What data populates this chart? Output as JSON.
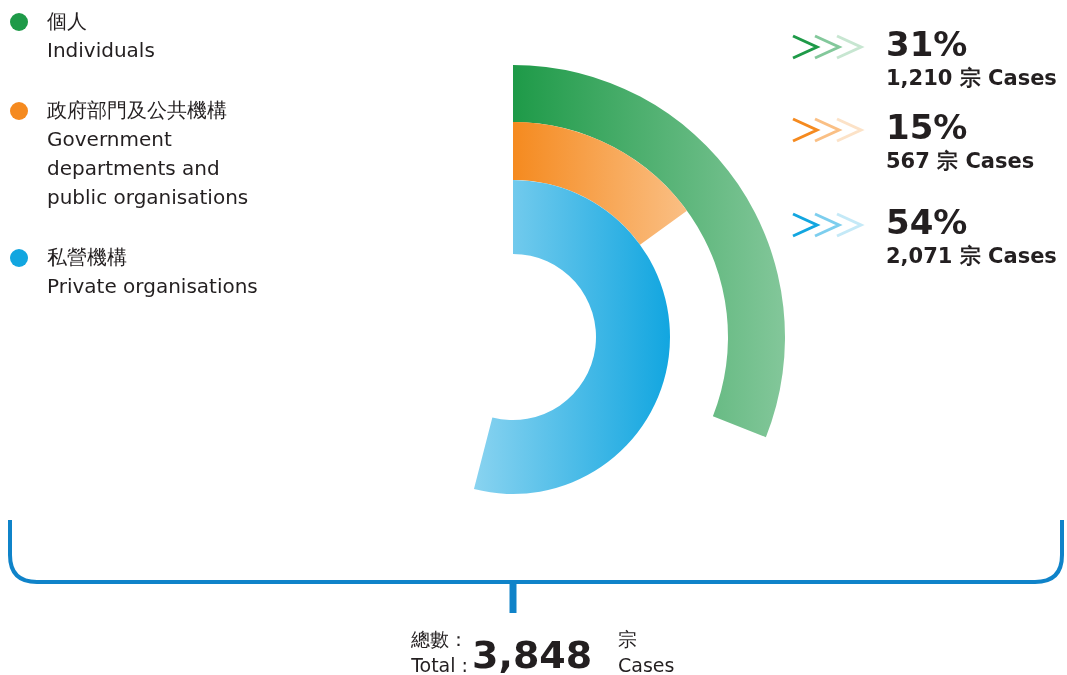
{
  "chart_data": {
    "type": "other",
    "categories": [
      "個人\nIndividuals",
      "政府部門及公共機構\nGovernment\ndepartments and\npublic organisations",
      "私營機構\nPrivate organisations"
    ],
    "values": [
      31,
      15,
      54
    ],
    "value_labels": [
      "31%",
      "15%",
      "54%"
    ],
    "colors": [
      "#1e9a48",
      "#f58a1f",
      "#12a6e0"
    ],
    "annotations": [
      "1,210 宗 Cases",
      "567 宗 Cases",
      "2,071 宗 Cases",
      "總數：",
      "Total :",
      "3,848",
      "宗",
      "Cases"
    ]
  }
}
